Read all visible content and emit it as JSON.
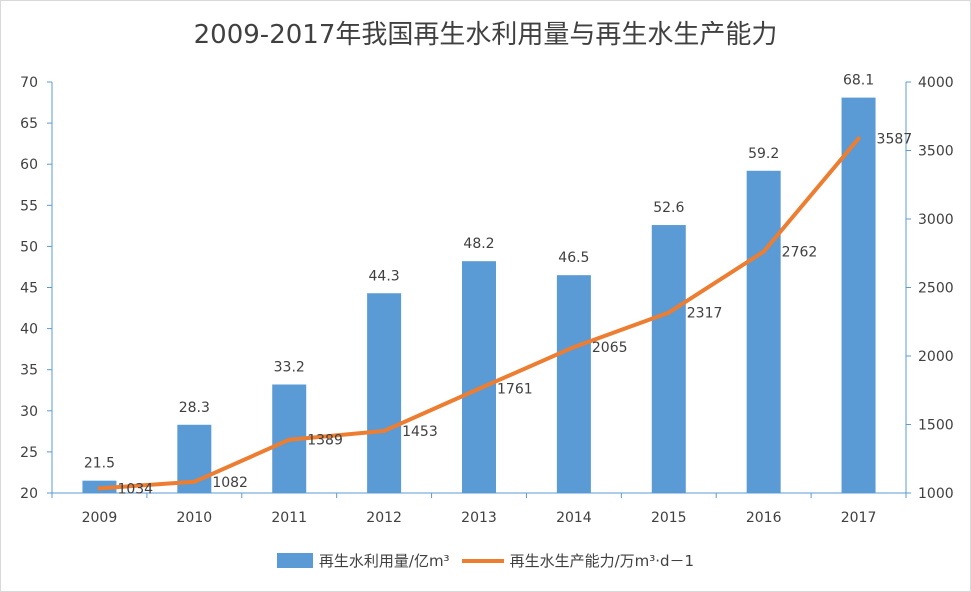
{
  "colors": {
    "bar": "#5b9bd5",
    "line": "#ed7d31",
    "axis": "#5b9bd5",
    "text": "#404040"
  },
  "chart_data": {
    "type": "bar",
    "title": "2009-2017年我国再生水利用量与再生水生产能力",
    "categories": [
      "2009",
      "2010",
      "2011",
      "2012",
      "2013",
      "2014",
      "2015",
      "2016",
      "2017"
    ],
    "series": [
      {
        "name": "再生水利用量/亿m³",
        "type": "bar",
        "axis": "left",
        "values": [
          21.5,
          28.3,
          33.2,
          44.3,
          48.2,
          46.5,
          52.6,
          59.2,
          68.1
        ]
      },
      {
        "name": "再生水生产能力/万m³·d－1",
        "type": "line",
        "axis": "right",
        "values": [
          1034,
          1082,
          1389,
          1453,
          1761,
          2065,
          2317,
          2762,
          3587
        ]
      }
    ],
    "y_left": {
      "min": 20,
      "max": 70,
      "step": 5,
      "ticks": [
        "20",
        "25",
        "30",
        "35",
        "40",
        "45",
        "50",
        "55",
        "60",
        "65",
        "70"
      ]
    },
    "y_right": {
      "min": 1000,
      "max": 4000,
      "step": 500,
      "ticks": [
        "1000",
        "1500",
        "2000",
        "2500",
        "3000",
        "3500",
        "4000"
      ]
    },
    "legend_position": "bottom",
    "grid": false
  }
}
